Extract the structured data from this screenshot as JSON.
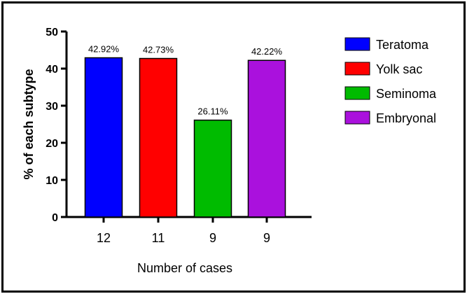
{
  "chart_data": {
    "type": "bar",
    "categories": [
      "12",
      "11",
      "9",
      "9"
    ],
    "values": [
      42.92,
      42.73,
      26.11,
      42.22
    ],
    "data_labels": [
      "42.92%",
      "42.73%",
      "26.11%",
      "42.22%"
    ],
    "colors": [
      "#0000ff",
      "#ff0000",
      "#00bb00",
      "#aa11dd"
    ],
    "legend": [
      "Teratoma",
      "Yolk sac",
      "Seminoma",
      "Embryonal"
    ],
    "legend_position": "right",
    "xlabel": "Number of cases",
    "ylabel": "% of each subtype",
    "ylim": [
      0,
      50
    ],
    "yticks": [
      "0",
      "10",
      "20",
      "30",
      "40",
      "50"
    ],
    "grid": false
  }
}
